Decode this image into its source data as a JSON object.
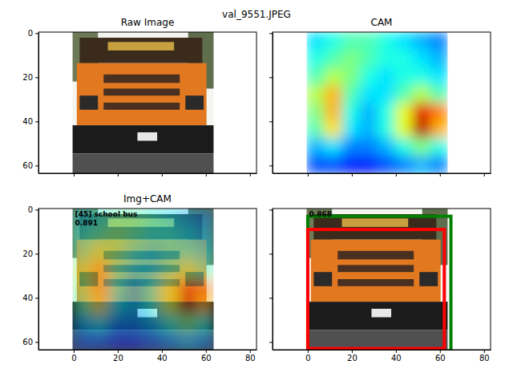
{
  "title": "val_9551.JPEG",
  "chart_data": [
    {
      "type": "image",
      "title": "Raw Image",
      "xlim": [
        -16,
        83
      ],
      "ylim": [
        63.5,
        -0.5
      ],
      "xticks": [
        0,
        20,
        40,
        60,
        80
      ],
      "yticks": [
        0,
        20,
        40,
        60
      ],
      "image_extent": [
        -0.5,
        63.5
      ],
      "tick_labels": "y"
    },
    {
      "type": "heatmap",
      "title": "CAM",
      "xlim": [
        -16,
        83
      ],
      "ylim": [
        63.5,
        -0.5
      ],
      "xticks": [
        0,
        20,
        40,
        60,
        80
      ],
      "yticks": [
        0,
        20,
        40,
        60
      ],
      "image_extent": [
        -0.5,
        63.5
      ],
      "tick_labels": false,
      "zlim": [
        0,
        1
      ],
      "cells": [
        [
          0.35,
          0.4,
          0.45,
          0.45,
          0.4,
          0.35,
          0.3,
          0.25
        ],
        [
          0.4,
          0.45,
          0.5,
          0.45,
          0.4,
          0.4,
          0.35,
          0.3
        ],
        [
          0.45,
          0.55,
          0.5,
          0.4,
          0.35,
          0.4,
          0.4,
          0.35
        ],
        [
          0.55,
          0.7,
          0.45,
          0.35,
          0.35,
          0.45,
          0.55,
          0.45
        ],
        [
          0.5,
          0.7,
          0.4,
          0.3,
          0.4,
          0.6,
          0.9,
          0.75
        ],
        [
          0.45,
          0.65,
          0.35,
          0.3,
          0.4,
          0.6,
          0.95,
          0.7
        ],
        [
          0.3,
          0.35,
          0.25,
          0.25,
          0.3,
          0.4,
          0.5,
          0.4
        ],
        [
          0.2,
          0.2,
          0.15,
          0.15,
          0.2,
          0.25,
          0.3,
          0.25
        ]
      ]
    },
    {
      "type": "overlay",
      "title": "Img+CAM",
      "xlim": [
        -16,
        83
      ],
      "ylim": [
        63.5,
        -0.5
      ],
      "xticks": [
        0,
        20,
        40,
        60,
        80
      ],
      "yticks": [
        0,
        20,
        40,
        60
      ],
      "image_extent": [
        -0.5,
        63.5
      ],
      "zlim": [
        0,
        1
      ],
      "annotations": [
        "[45] school bus",
        "0.891"
      ],
      "cells": [
        [
          0.35,
          0.4,
          0.45,
          0.45,
          0.4,
          0.35,
          0.3,
          0.25
        ],
        [
          0.4,
          0.45,
          0.5,
          0.45,
          0.4,
          0.4,
          0.35,
          0.3
        ],
        [
          0.45,
          0.55,
          0.5,
          0.4,
          0.35,
          0.4,
          0.4,
          0.35
        ],
        [
          0.55,
          0.7,
          0.45,
          0.35,
          0.35,
          0.45,
          0.55,
          0.45
        ],
        [
          0.5,
          0.7,
          0.4,
          0.3,
          0.4,
          0.6,
          0.9,
          0.75
        ],
        [
          0.45,
          0.65,
          0.35,
          0.3,
          0.4,
          0.6,
          0.95,
          0.7
        ],
        [
          0.3,
          0.35,
          0.25,
          0.25,
          0.3,
          0.4,
          0.5,
          0.4
        ],
        [
          0.2,
          0.2,
          0.15,
          0.15,
          0.2,
          0.25,
          0.3,
          0.25
        ]
      ]
    },
    {
      "type": "image",
      "xlim": [
        -16,
        83
      ],
      "ylim": [
        63.5,
        -0.5
      ],
      "xticks": [
        0,
        20,
        40,
        60,
        80
      ],
      "yticks": [
        0,
        20,
        40,
        60
      ],
      "image_extent": [
        -0.5,
        63.5
      ],
      "tick_labels": "x",
      "annotations": [
        "0.868"
      ],
      "boxes": [
        {
          "color": "green",
          "x": [
            0,
            65
          ],
          "y": [
            3,
            64
          ]
        },
        {
          "color": "red",
          "x": [
            0,
            62
          ],
          "y": [
            9,
            63
          ]
        }
      ]
    }
  ]
}
